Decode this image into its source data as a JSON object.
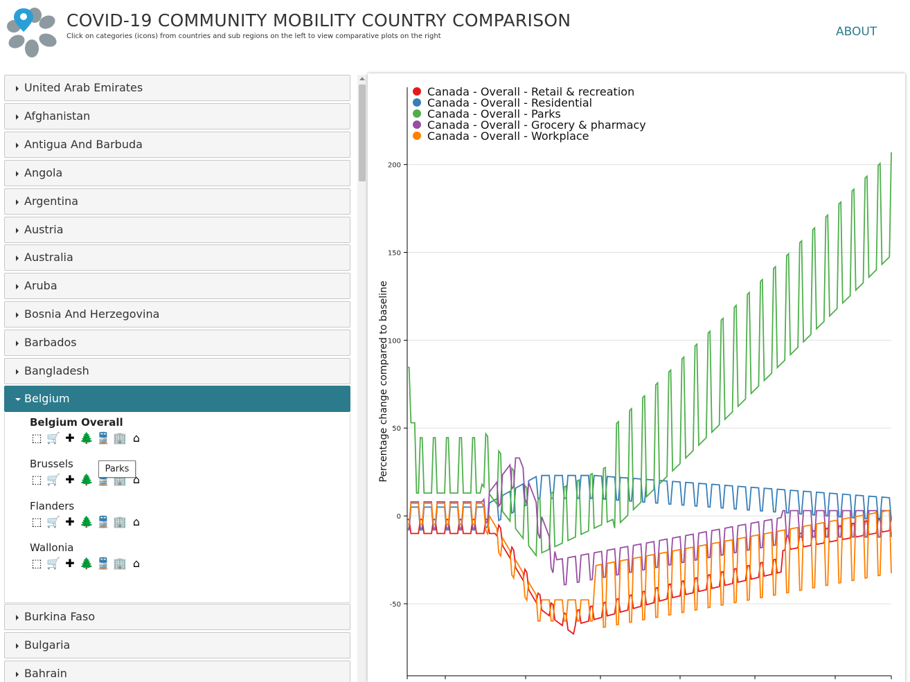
{
  "header": {
    "title": "COVID-19 COMMUNITY MOBILITY COUNTRY COMPARISON",
    "subtitle": "Click on categories (icons) from countries and sub regions on the left to view comparative plots on the right",
    "about": "ABOUT",
    "logo_icon": "location-pin-icon"
  },
  "sidebar": {
    "countries_before": [
      "United Arab Emirates",
      "Afghanistan",
      "Antigua And Barbuda",
      "Angola",
      "Argentina",
      "Austria",
      "Australia",
      "Aruba",
      "Bosnia And Herzegovina",
      "Barbados",
      "Bangladesh"
    ],
    "open_country": "Belgium",
    "regions": [
      "Belgium Overall",
      "Brussels",
      "Flanders",
      "Wallonia"
    ],
    "countries_after": [
      "Burkina Faso",
      "Bulgaria",
      "Bahrain"
    ],
    "category_icons": [
      "select-all-icon",
      "cart-icon",
      "pharmacy-icon",
      "tree-icon",
      "train-icon",
      "building-icon",
      "home-icon"
    ],
    "tooltip": "Parks"
  },
  "chart_data": {
    "type": "line",
    "title": "",
    "xlabel": "",
    "ylabel": "Percentage change compared to baseline",
    "ylim": [
      -91,
      244
    ],
    "yticks": [
      -50,
      0,
      50,
      100,
      150,
      200
    ],
    "ytick_labels": [
      "-50",
      "0",
      "50",
      "100",
      "150",
      "200"
    ],
    "grid": true,
    "legend_placement": "top-left",
    "series": [
      {
        "name": "Canada - Overall - Retail & recreation",
        "color": "#e41a1c"
      },
      {
        "name": "Canada - Overall - Residential",
        "color": "#377eb8"
      },
      {
        "name": "Canada - Overall - Parks",
        "color": "#4daf4a"
      },
      {
        "name": "Canada - Overall - Grocery & pharmacy",
        "color": "#984ea3"
      },
      {
        "name": "Canada - Overall - Workplace",
        "color": "#ff7f00"
      }
    ]
  }
}
